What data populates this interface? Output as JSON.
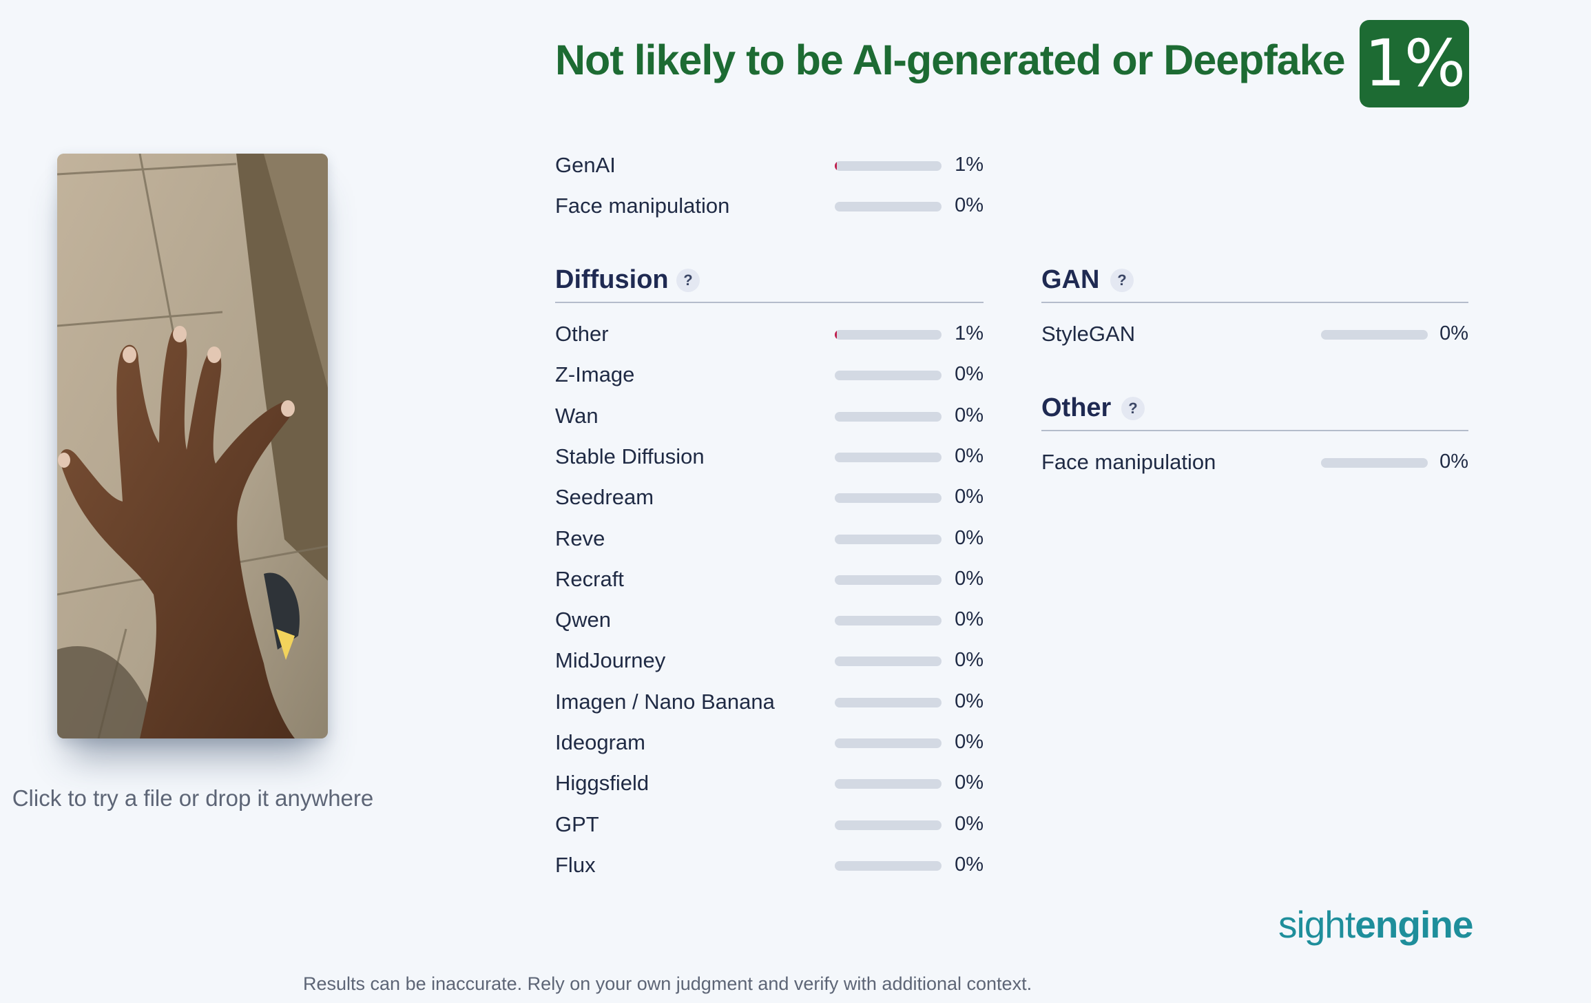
{
  "verdict": {
    "headline": "Not likely to be AI-generated or Deepfake",
    "score_label": "1%",
    "score_value": 1,
    "color": "#1d6b33"
  },
  "upload": {
    "hint": "Click to try a file or drop it anywhere"
  },
  "summary": [
    {
      "label": "GenAI",
      "pct": "1%",
      "value": 1
    },
    {
      "label": "Face manipulation",
      "pct": "0%",
      "value": 0
    }
  ],
  "diffusion": {
    "title": "Diffusion",
    "help": "?",
    "items": [
      {
        "label": "Other",
        "pct": "1%",
        "value": 1
      },
      {
        "label": "Z-Image",
        "pct": "0%",
        "value": 0
      },
      {
        "label": "Wan",
        "pct": "0%",
        "value": 0
      },
      {
        "label": "Stable Diffusion",
        "pct": "0%",
        "value": 0
      },
      {
        "label": "Seedream",
        "pct": "0%",
        "value": 0
      },
      {
        "label": "Reve",
        "pct": "0%",
        "value": 0
      },
      {
        "label": "Recraft",
        "pct": "0%",
        "value": 0
      },
      {
        "label": "Qwen",
        "pct": "0%",
        "value": 0
      },
      {
        "label": "MidJourney",
        "pct": "0%",
        "value": 0
      },
      {
        "label": "Imagen / Nano Banana",
        "pct": "0%",
        "value": 0
      },
      {
        "label": "Ideogram",
        "pct": "0%",
        "value": 0
      },
      {
        "label": "Higgsfield",
        "pct": "0%",
        "value": 0
      },
      {
        "label": "GPT",
        "pct": "0%",
        "value": 0
      },
      {
        "label": "Flux",
        "pct": "0%",
        "value": 0
      }
    ]
  },
  "gan": {
    "title": "GAN",
    "help": "?",
    "items": [
      {
        "label": "StyleGAN",
        "pct": "0%",
        "value": 0
      }
    ]
  },
  "other": {
    "title": "Other",
    "help": "?",
    "items": [
      {
        "label": "Face manipulation",
        "pct": "0%",
        "value": 0
      }
    ]
  },
  "footer": {
    "brand_light": "sight",
    "brand_bold": "engine",
    "disclaimer": "Results can be inaccurate. Rely on your own judgment and verify with additional context."
  },
  "colors": {
    "bar_track": "#d3d9e3",
    "bar_fill": "#c01f4d",
    "brand": "#1e8e9b"
  }
}
